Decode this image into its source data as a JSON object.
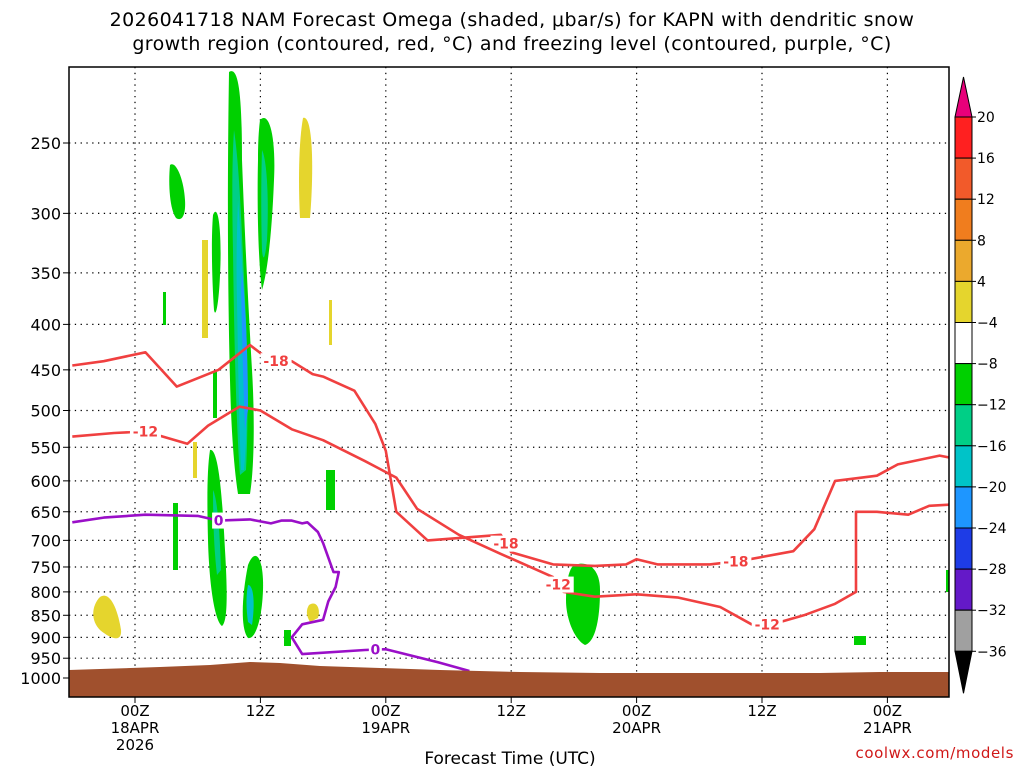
{
  "title": {
    "line1": "2026041718 NAM Forecast Omega (shaded, μbar/s) for KAPN with dendritic snow",
    "line2": "growth region (contoured, red, °C) and freezing level (contoured, purple, °C)"
  },
  "credit": "coolwx.com/models",
  "chart_data": {
    "type": "heatmap",
    "title": "2026041718 NAM Forecast Omega (shaded, μbar/s) for KAPN with dendritic snow growth region (contoured, red, °C) and freezing level (contoured, purple, °C)",
    "xlabel": "Forecast Time (UTC)",
    "ylabel": "",
    "x_range_hours": [
      -6,
      78
    ],
    "y_scale": "log-pressure",
    "ylim_hpa": [
      1040,
      200
    ],
    "grid": true,
    "x_ticks": [
      {
        "hour": 0,
        "line1": "00Z",
        "line2": "18APR",
        "line3": "2026"
      },
      {
        "hour": 12,
        "line1": "12Z",
        "line2": "",
        "line3": ""
      },
      {
        "hour": 24,
        "line1": "00Z",
        "line2": "19APR",
        "line3": ""
      },
      {
        "hour": 36,
        "line1": "12Z",
        "line2": "",
        "line3": ""
      },
      {
        "hour": 48,
        "line1": "00Z",
        "line2": "20APR",
        "line3": ""
      },
      {
        "hour": 60,
        "line1": "12Z",
        "line2": "",
        "line3": ""
      },
      {
        "hour": 72,
        "line1": "00Z",
        "line2": "21APR",
        "line3": ""
      }
    ],
    "y_ticks": [
      250,
      300,
      350,
      400,
      450,
      500,
      550,
      600,
      650,
      700,
      750,
      800,
      850,
      900,
      950,
      1000
    ],
    "colorbar": {
      "units": "μbar/s",
      "levels": [
        20,
        16,
        12,
        8,
        4,
        -4,
        -8,
        -12,
        -16,
        -20,
        -24,
        -28,
        -32,
        -36
      ],
      "colors": [
        "#ff2020",
        "#f25a2a",
        "#f07d1e",
        "#eba92d",
        "#e5d52d",
        "#ffffff",
        "#00d000",
        "#00cf86",
        "#00c3c8",
        "#1e96ff",
        "#1e3ce6",
        "#6419c8",
        "#a000c8",
        "#a0a0a0"
      ],
      "top_color": "#e8007a",
      "bottom_color": "#000000"
    },
    "series": [
      {
        "name": "-18",
        "color": "#f04040",
        "points": [
          [
            -6,
            445
          ],
          [
            -3,
            440
          ],
          [
            1,
            430
          ],
          [
            4,
            470
          ],
          [
            8,
            450
          ],
          [
            11,
            422
          ],
          [
            13,
            440
          ],
          [
            15,
            440
          ],
          [
            17,
            455
          ],
          [
            18,
            458
          ],
          [
            21,
            475
          ],
          [
            23,
            518
          ],
          [
            24,
            555
          ],
          [
            25,
            650
          ],
          [
            28,
            700
          ],
          [
            35,
            690
          ],
          [
            36,
            722
          ],
          [
            40,
            745
          ],
          [
            44,
            748
          ],
          [
            47,
            745
          ],
          [
            48,
            735
          ],
          [
            50,
            745
          ],
          [
            55,
            745
          ],
          [
            58,
            738
          ],
          [
            63,
            720
          ],
          [
            65,
            680
          ],
          [
            67,
            600
          ],
          [
            71,
            592
          ],
          [
            73,
            575
          ],
          [
            77,
            562
          ],
          [
            78,
            565
          ]
        ]
      },
      {
        "name": "-12",
        "color": "#f04040",
        "points": [
          [
            -6,
            535
          ],
          [
            -2,
            530
          ],
          [
            1,
            528
          ],
          [
            5,
            545
          ],
          [
            7,
            520
          ],
          [
            10,
            495
          ],
          [
            12,
            500
          ],
          [
            15,
            525
          ],
          [
            18,
            540
          ],
          [
            22,
            570
          ],
          [
            25,
            595
          ],
          [
            27,
            645
          ],
          [
            31,
            690
          ],
          [
            35,
            725
          ],
          [
            40,
            770
          ],
          [
            41,
            800
          ],
          [
            44,
            810
          ],
          [
            48,
            805
          ],
          [
            52,
            812
          ],
          [
            56,
            832
          ],
          [
            59,
            870
          ],
          [
            61,
            870
          ],
          [
            64,
            850
          ],
          [
            67,
            825
          ],
          [
            69,
            800
          ],
          [
            69,
            650
          ],
          [
            71,
            650
          ],
          [
            74,
            655
          ],
          [
            76,
            640
          ],
          [
            78,
            638
          ]
        ]
      },
      {
        "name": "0",
        "color": "#9a0fc8",
        "points": [
          [
            -6,
            668
          ],
          [
            -3,
            660
          ],
          [
            1,
            655
          ],
          [
            6,
            657
          ],
          [
            8,
            665
          ],
          [
            11,
            663
          ],
          [
            13,
            670
          ],
          [
            14,
            665
          ],
          [
            15,
            665
          ],
          [
            16,
            670
          ],
          [
            16.5,
            668
          ],
          [
            17.5,
            685
          ],
          [
            18,
            705
          ],
          [
            19,
            760
          ],
          [
            19.5,
            760
          ],
          [
            19.2,
            790
          ],
          [
            18.5,
            820
          ],
          [
            18,
            860
          ],
          [
            16,
            870
          ],
          [
            15,
            900
          ],
          [
            16,
            940
          ],
          [
            22,
            930
          ],
          [
            24,
            928
          ],
          [
            29,
            960
          ],
          [
            32,
            982
          ]
        ]
      }
    ]
  }
}
